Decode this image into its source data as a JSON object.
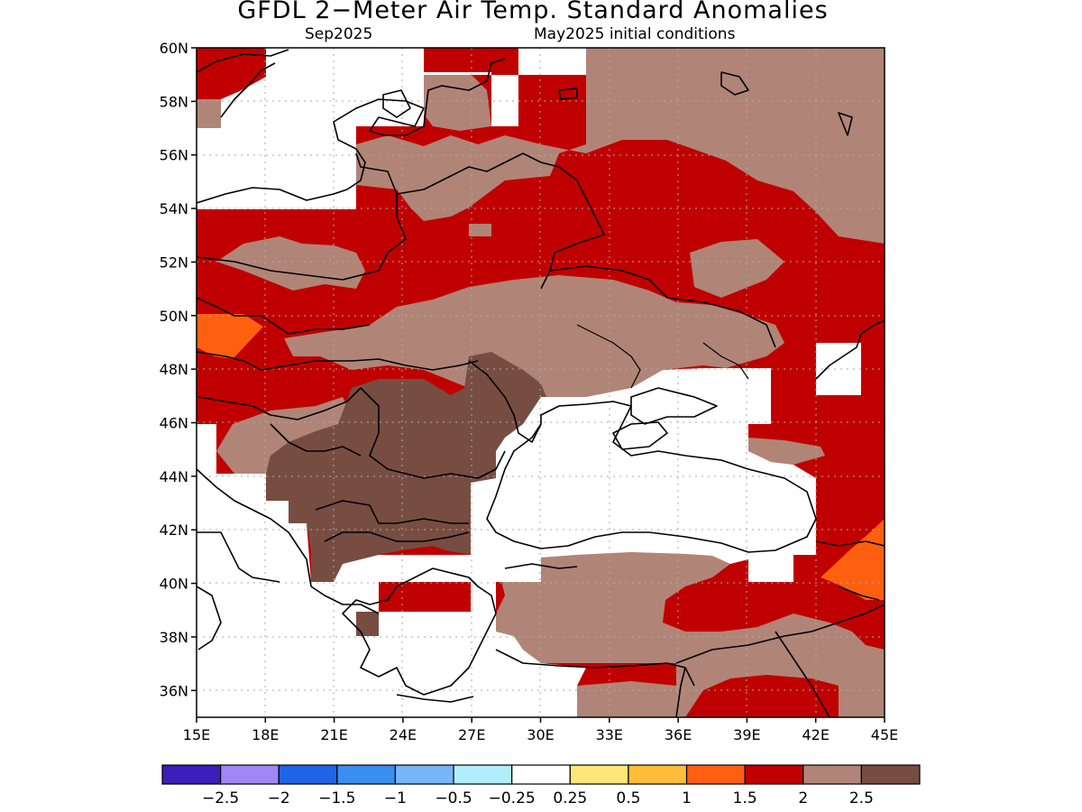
{
  "title": "GFDL 2−Meter Air Temp. Standard Anomalies",
  "subtitle_left": "Sep2025",
  "subtitle_right": "May2025 initial conditions",
  "map": {
    "lon_range": [
      15,
      45
    ],
    "lat_range": [
      35,
      60
    ],
    "lon_ticks": [
      "15E",
      "18E",
      "21E",
      "24E",
      "27E",
      "30E",
      "33E",
      "36E",
      "39E",
      "42E",
      "45E"
    ],
    "lat_ticks": [
      "60N",
      "58N",
      "56N",
      "54N",
      "52N",
      "50N",
      "48N",
      "46N",
      "44N",
      "42N",
      "40N",
      "38N",
      "36N"
    ],
    "grid": "dotted"
  },
  "colorbar": {
    "colors": [
      "#3a20b8",
      "#9f88f5",
      "#1f63e6",
      "#3a8ef0",
      "#77b6f7",
      "#b0eefb",
      "#ffffff",
      "#ffe67a",
      "#ffbd3a",
      "#ff6010",
      "#c00000",
      "#b08578",
      "#774d42"
    ],
    "labels": [
      "−2.5",
      "−2",
      "−1.5",
      "−1",
      "−0.5",
      "−0.25",
      "0.25",
      "0.5",
      "1",
      "1.5",
      "2",
      "2.5"
    ]
  },
  "anomaly_colors": {
    "red_2": "#c00000",
    "tan_2_5": "#b08578",
    "brown_gt_2_5": "#774d42",
    "orange_1_5": "#ff6010",
    "white_neutral": "#ffffff"
  }
}
